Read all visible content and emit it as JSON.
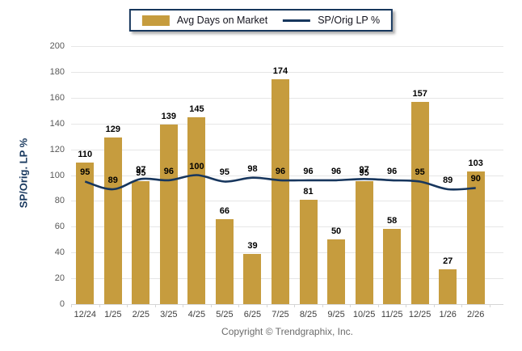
{
  "legend": {
    "bar_label": "Avg Days on Market",
    "line_label": "SP/Orig LP %"
  },
  "y_axis": {
    "title": "SP/Orig. LP %"
  },
  "footer": {
    "copyright": "Copyright © Trendgraphix, Inc."
  },
  "chart_data": {
    "type": "bar",
    "categories": [
      "12/24",
      "1/25",
      "2/25",
      "3/25",
      "4/25",
      "5/25",
      "6/25",
      "7/25",
      "8/25",
      "9/25",
      "10/25",
      "11/25",
      "12/25",
      "1/26",
      "2/26"
    ],
    "series": [
      {
        "name": "Avg Days on Market",
        "type": "bar",
        "color": "#C69C3E",
        "values": [
          110,
          129,
          95,
          139,
          145,
          66,
          39,
          174,
          81,
          50,
          95,
          58,
          157,
          27,
          103
        ]
      },
      {
        "name": "SP/Orig LP %",
        "type": "line",
        "color": "#17365D",
        "values": [
          95,
          89,
          97,
          96,
          100,
          95,
          98,
          96,
          96,
          96,
          97,
          96,
          95,
          89,
          90
        ]
      }
    ],
    "title": "",
    "xlabel": "",
    "ylabel": "SP/Orig. LP %",
    "ylim": [
      0,
      200
    ],
    "y_step": 20,
    "grid": true,
    "legend_position": "top-center",
    "data_labels": true
  },
  "colors": {
    "bar": "#C69C3E",
    "line": "#17365D",
    "grid": "#E6E6E6",
    "axis": "#D5D5D5",
    "y_tick_text": "#595959",
    "x_tick_text": "#3F3F3F",
    "value_label": "#000000",
    "y_title": "#17375D",
    "legend_border": "#17375D",
    "footer_text": "#6b6b6b"
  }
}
